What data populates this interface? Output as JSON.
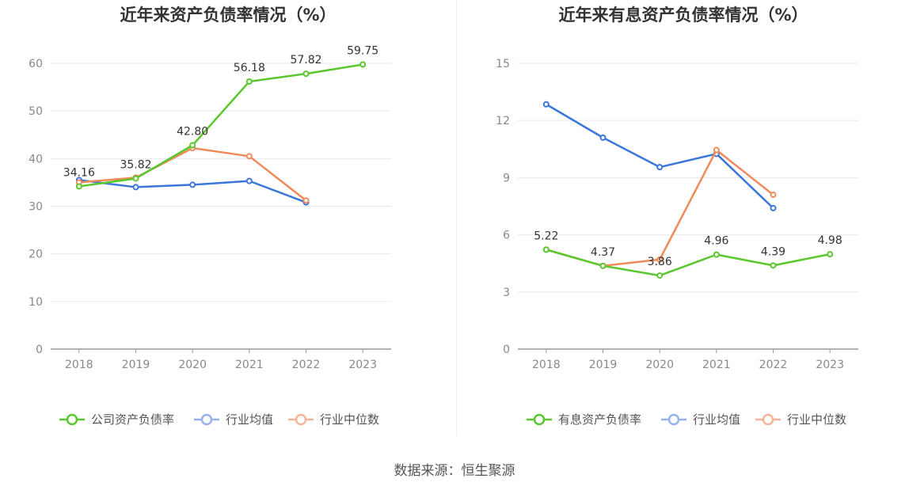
{
  "source": "数据来源：恒生聚源",
  "colors": {
    "company": "#5ac72f",
    "industry_avg": "#3b76db",
    "industry_median": "#f08a5a"
  },
  "chart_data": [
    {
      "type": "line",
      "title": "近年来资产负债率情况（%）",
      "x": [
        "2018",
        "2019",
        "2020",
        "2021",
        "2022",
        "2023"
      ],
      "ylim": [
        0,
        60
      ],
      "yticks": [
        0,
        10,
        20,
        30,
        40,
        50,
        60
      ],
      "grid": true,
      "legend_position": "bottom",
      "series": [
        {
          "name": "公司资产负债率",
          "values": [
            34.16,
            35.82,
            42.8,
            56.18,
            57.82,
            59.75
          ],
          "labels": [
            "34.16",
            "35.82",
            "42.80",
            "56.18",
            "57.82",
            "59.75"
          ]
        },
        {
          "name": "行业均值",
          "values": [
            35.5,
            34.0,
            34.5,
            35.3,
            30.8,
            null
          ]
        },
        {
          "name": "行业中位数",
          "values": [
            35.0,
            36.0,
            42.2,
            40.5,
            31.2,
            null
          ]
        }
      ]
    },
    {
      "type": "line",
      "title": "近年来有息资产负债率情况（%）",
      "x": [
        "2018",
        "2019",
        "2020",
        "2021",
        "2022",
        "2023"
      ],
      "ylim": [
        0,
        15
      ],
      "yticks": [
        0,
        3,
        6,
        9,
        12,
        15
      ],
      "grid": true,
      "legend_position": "bottom",
      "series": [
        {
          "name": "有息资产负债率",
          "values": [
            5.22,
            4.37,
            3.86,
            4.96,
            4.39,
            4.98
          ],
          "labels": [
            "5.22",
            "4.37",
            "3.86",
            "4.96",
            "4.39",
            "4.98"
          ]
        },
        {
          "name": "行业均值",
          "values": [
            12.85,
            11.1,
            9.55,
            10.25,
            7.4,
            null
          ]
        },
        {
          "name": "行业中位数",
          "values": [
            5.22,
            4.37,
            4.7,
            10.45,
            8.1,
            null
          ]
        }
      ]
    }
  ]
}
